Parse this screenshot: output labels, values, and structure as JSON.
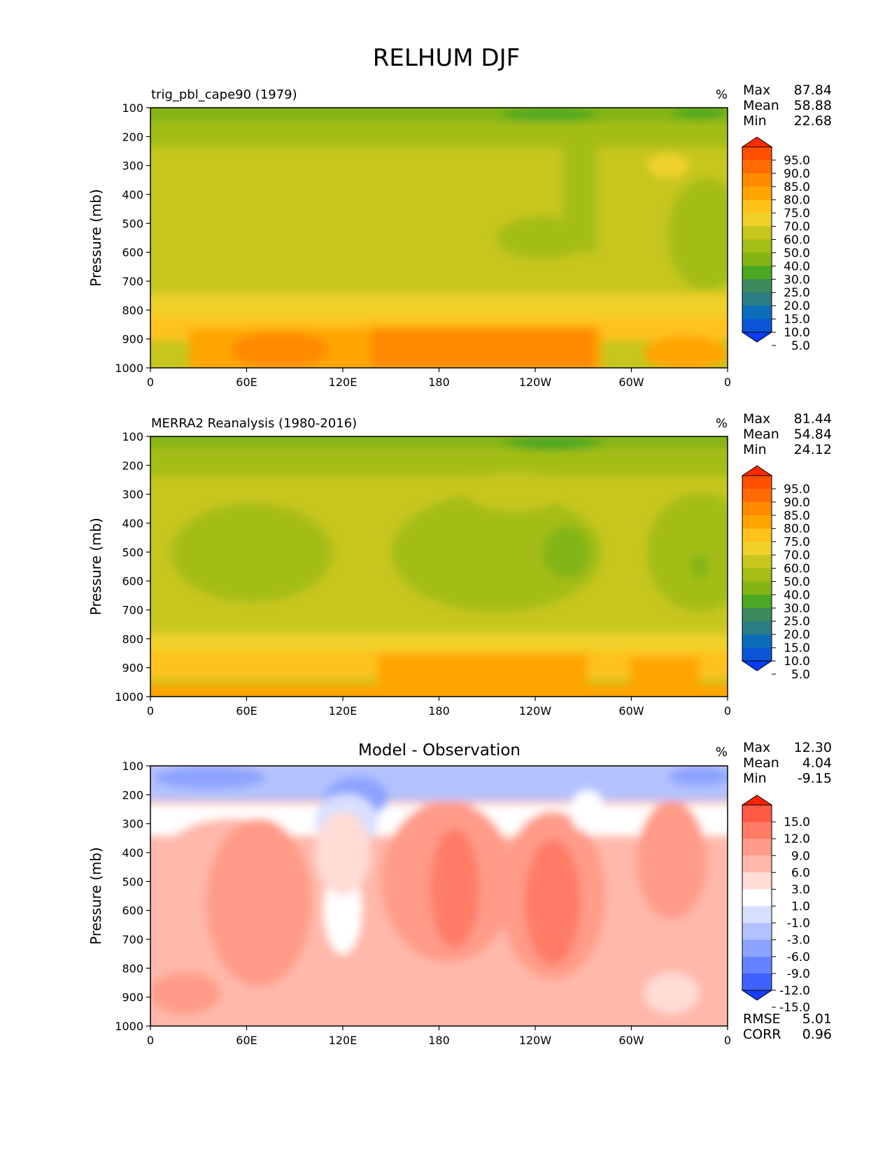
{
  "title": "RELHUM DJF",
  "chart_data": [
    {
      "type": "heatmap",
      "title": "trig_pbl_cape90 (1979)",
      "units": "%",
      "ylabel": "Pressure (mb)",
      "x_ticks": [
        "0",
        "60E",
        "120E",
        "180",
        "120W",
        "60W",
        "0"
      ],
      "y_ticks": [
        "100",
        "200",
        "300",
        "400",
        "500",
        "600",
        "700",
        "800",
        "900",
        "1000"
      ],
      "ylim": [
        100,
        1000
      ],
      "xlim": [
        0,
        360
      ],
      "stats": [
        {
          "label": "Max",
          "value": "87.84"
        },
        {
          "label": "Mean",
          "value": "58.88"
        },
        {
          "label": "Min",
          "value": "22.68"
        }
      ],
      "colorbar": {
        "levels": [
          "95.0",
          "90.0",
          "85.0",
          "80.0",
          "75.0",
          "70.0",
          "60.0",
          "50.0",
          "40.0",
          "30.0",
          "25.0",
          "20.0",
          "15.0",
          "10.0",
          "5.0"
        ],
        "colors": [
          "#ff2a00",
          "#ff4f00",
          "#ff6b00",
          "#ff8a00",
          "#ffa500",
          "#ffc21a",
          "#efd12a",
          "#c6c61e",
          "#a4bd17",
          "#84b514",
          "#4aa823",
          "#3d8a5f",
          "#2b7d84",
          "#0c6dba",
          "#0a56d6",
          "#0a3cf5"
        ]
      }
    },
    {
      "type": "heatmap",
      "title": "MERRA2 Reanalysis (1980-2016)",
      "units": "%",
      "ylabel": "Pressure (mb)",
      "x_ticks": [
        "0",
        "60E",
        "120E",
        "180",
        "120W",
        "60W",
        "0"
      ],
      "y_ticks": [
        "100",
        "200",
        "300",
        "400",
        "500",
        "600",
        "700",
        "800",
        "900",
        "1000"
      ],
      "ylim": [
        100,
        1000
      ],
      "xlim": [
        0,
        360
      ],
      "stats": [
        {
          "label": "Max",
          "value": "81.44"
        },
        {
          "label": "Mean",
          "value": "54.84"
        },
        {
          "label": "Min",
          "value": "24.12"
        }
      ],
      "colorbar": {
        "levels": [
          "95.0",
          "90.0",
          "85.0",
          "80.0",
          "75.0",
          "70.0",
          "60.0",
          "50.0",
          "40.0",
          "30.0",
          "25.0",
          "20.0",
          "15.0",
          "10.0",
          "5.0"
        ],
        "colors": [
          "#ff2a00",
          "#ff4f00",
          "#ff6b00",
          "#ff8a00",
          "#ffa500",
          "#ffc21a",
          "#efd12a",
          "#c6c61e",
          "#a4bd17",
          "#84b514",
          "#4aa823",
          "#3d8a5f",
          "#2b7d84",
          "#0c6dba",
          "#0a56d6",
          "#0a3cf5"
        ]
      }
    },
    {
      "type": "heatmap",
      "title": "Model - Observation",
      "units": "%",
      "ylabel": "Pressure (mb)",
      "x_ticks": [
        "0",
        "60E",
        "120E",
        "180",
        "120W",
        "60W",
        "0"
      ],
      "y_ticks": [
        "100",
        "200",
        "300",
        "400",
        "500",
        "600",
        "700",
        "800",
        "900",
        "1000"
      ],
      "ylim": [
        100,
        1000
      ],
      "xlim": [
        0,
        360
      ],
      "stats": [
        {
          "label": "Max",
          "value": "12.30"
        },
        {
          "label": "Mean",
          "value": "4.04"
        },
        {
          "label": "Min",
          "value": "-9.15"
        }
      ],
      "extra_stats": [
        {
          "label": "RMSE",
          "value": "5.01"
        },
        {
          "label": "CORR",
          "value": "0.96"
        }
      ],
      "colorbar": {
        "levels": [
          "15.0",
          "12.0",
          "9.0",
          "6.0",
          "3.0",
          "1.0",
          "-1.0",
          "-3.0",
          "-6.0",
          "-9.0",
          "-12.0",
          "-15.0"
        ],
        "colors": [
          "#ff2200",
          "#ff5a44",
          "#ff7b66",
          "#ff9b88",
          "#ffb8aa",
          "#ffdcd5",
          "#ffffff",
          "#d8e0ff",
          "#b3c2ff",
          "#8ca3ff",
          "#6683ff",
          "#3f62ff",
          "#1a3cff"
        ]
      }
    }
  ]
}
